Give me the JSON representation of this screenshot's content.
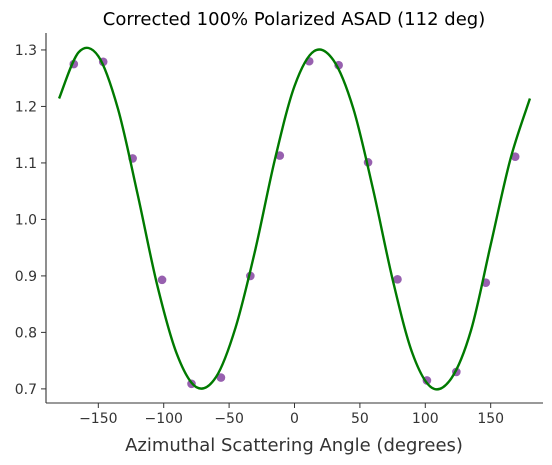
{
  "chart_data": {
    "type": "scatter",
    "title": "Corrected 100% Polarized ASAD (112 deg)",
    "xlabel": "Azimuthal Scattering Angle (degrees)",
    "ylabel": "",
    "xlim": [
      -190,
      190
    ],
    "ylim": [
      0.675,
      1.33
    ],
    "xticks": [
      -150,
      -100,
      -50,
      0,
      50,
      100,
      150
    ],
    "xtick_labels": [
      "−150",
      "−100",
      "−50",
      "0",
      "50",
      "100",
      "150"
    ],
    "yticks": [
      0.7,
      0.8,
      0.9,
      1.0,
      1.1,
      1.2,
      1.3
    ],
    "ytick_labels": [
      "0.7",
      "0.8",
      "0.9",
      "1.0",
      "1.1",
      "1.2",
      "1.3"
    ],
    "grid": false,
    "series": [
      {
        "kind": "points",
        "color": "#8e52a8",
        "x": [
          -168.75,
          -146.25,
          -123.75,
          -101.25,
          -78.75,
          -56.25,
          -33.75,
          -11.25,
          11.25,
          33.75,
          56.25,
          78.75,
          101.25,
          123.75,
          146.25,
          168.75
        ],
        "y": [
          1.275,
          1.279,
          1.108,
          0.893,
          0.709,
          0.72,
          0.9,
          1.113,
          1.28,
          1.273,
          1.101,
          0.894,
          0.715,
          0.73,
          0.888,
          1.111
        ]
      },
      {
        "kind": "fit-curve",
        "color": "#007a00",
        "x": [
          -180,
          -165,
          -150,
          -135,
          -120,
          -105,
          -90,
          -75,
          -60,
          -45,
          -30,
          -15,
          0,
          15,
          30,
          45,
          60,
          75,
          90,
          105,
          120,
          135,
          150,
          165,
          180
        ],
        "y": [
          1.214,
          1.296,
          1.289,
          1.196,
          1.045,
          0.884,
          0.762,
          0.703,
          0.721,
          0.809,
          0.946,
          1.106,
          1.236,
          1.298,
          1.281,
          1.196,
          1.054,
          0.894,
          0.764,
          0.702,
          0.719,
          0.804,
          0.955,
          1.106,
          1.214
        ]
      }
    ]
  }
}
